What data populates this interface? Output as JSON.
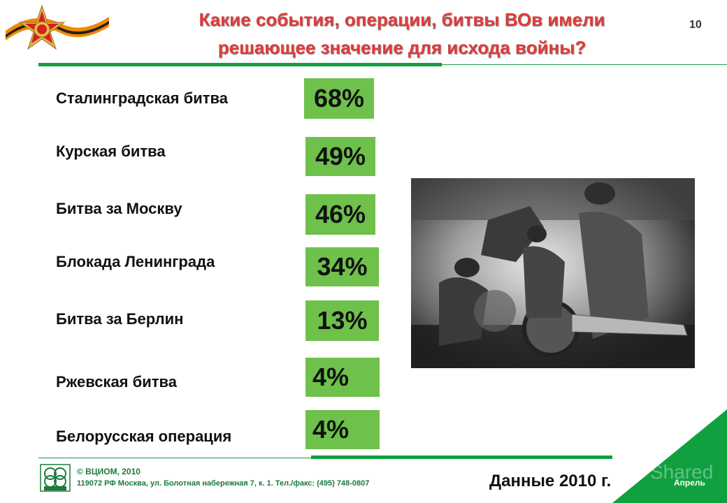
{
  "header": {
    "title_line1": "Какие события, операции, битвы ВОв имели",
    "title_line2": "решающее значение для исхода войны?",
    "page_number": "10"
  },
  "results": [
    {
      "label": "Сталинградская битва",
      "value": "68%"
    },
    {
      "label": "Курская битва",
      "value": "49%"
    },
    {
      "label": "Битва за Москву",
      "value": "46%"
    },
    {
      "label": "Блокада Ленинграда",
      "value": "34%"
    },
    {
      "label": "Битва за Берлин",
      "value": "13%"
    },
    {
      "label": "Ржевская битва",
      "value": "4%"
    },
    {
      "label": "Белорусская операция",
      "value": "4%"
    }
  ],
  "footer": {
    "copyright": "© ВЦИОМ, 2010",
    "address": "119072 РФ Москва, ул. Болотная набережная 7, к. 1. Тел./факс: (495) 748-0807",
    "data_year": "Данные 2010 г.",
    "month": "Апрель",
    "watermark": "Shared"
  },
  "colors": {
    "title": "#e03a3a",
    "accent_green": "#10a040",
    "value_box": "#6ec14a"
  },
  "icons": {
    "emblem": "order-of-patriotic-war-emblem-icon",
    "org_logo": "vciom-logo-icon",
    "photo": "soldiers-with-artillery-photo"
  }
}
